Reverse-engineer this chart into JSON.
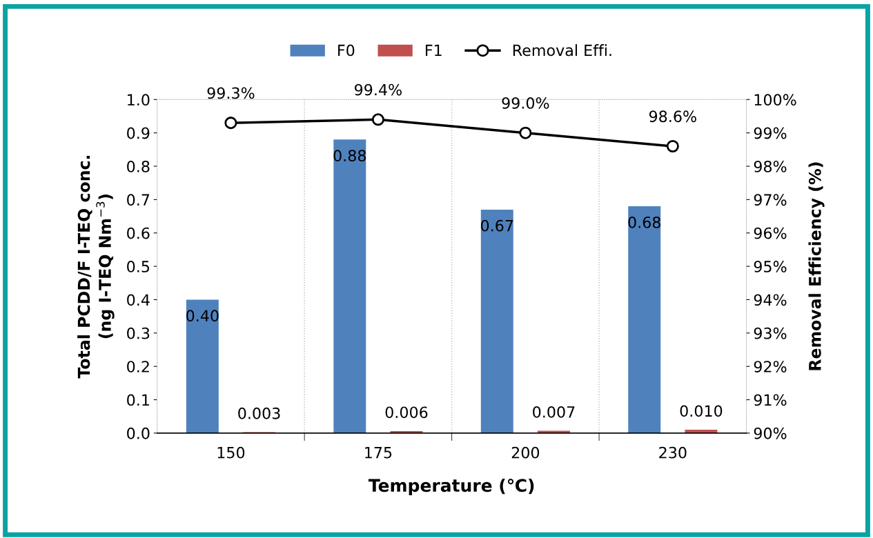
{
  "chart_data": {
    "type": "bar",
    "xlabel": "Temperature (℃)",
    "ylabel": "Total PCDD/F I-TEQ conc.\n(ng I-TEQ Nm$^{−3}$)",
    "y2label": "Removal Efficiency (%)",
    "categories": [
      "150",
      "175",
      "200",
      "230"
    ],
    "series": [
      {
        "name": "F0",
        "color": "#4f81bd",
        "values": [
          0.4,
          0.88,
          0.67,
          0.68
        ],
        "value_labels": [
          "0.40",
          "0.88",
          "0.67",
          "0.68"
        ]
      },
      {
        "name": "F1",
        "color": "#c0504d",
        "values": [
          0.003,
          0.006,
          0.007,
          0.01
        ],
        "value_labels": [
          "0.003",
          "0.006",
          "0.007",
          "0.010"
        ]
      },
      {
        "name": "Removal Effi.",
        "type": "line",
        "axis": "y2",
        "color": "#000000",
        "marker": "circle",
        "values": [
          99.3,
          99.4,
          99.0,
          98.6
        ],
        "value_labels": [
          "99.3%",
          "99.4%",
          "99.0%",
          "98.6%"
        ]
      }
    ],
    "ylim": [
      0,
      1.0
    ],
    "yticks": [
      {
        "value": 0,
        "label": "0.0"
      },
      0.1,
      0.2,
      0.3,
      0.4,
      0.5,
      0.6,
      0.7,
      0.8,
      0.9,
      {
        "value": 1.0,
        "label": "1.0"
      }
    ],
    "y2lim": [
      90,
      100
    ],
    "y2ticks": [
      {
        "value": 90,
        "label": "90%"
      },
      {
        "value": 91,
        "label": "91%"
      },
      {
        "value": 92,
        "label": "92%"
      },
      {
        "value": 93,
        "label": "93%"
      },
      {
        "value": 94,
        "label": "94%"
      },
      {
        "value": 95,
        "label": "95%"
      },
      {
        "value": 96,
        "label": "96%"
      },
      {
        "value": 97,
        "label": "97%"
      },
      {
        "value": 98,
        "label": "98%"
      },
      {
        "value": 99,
        "label": "99%"
      },
      {
        "value": 100,
        "label": "100%"
      }
    ],
    "grid": "x",
    "legend": "top"
  }
}
